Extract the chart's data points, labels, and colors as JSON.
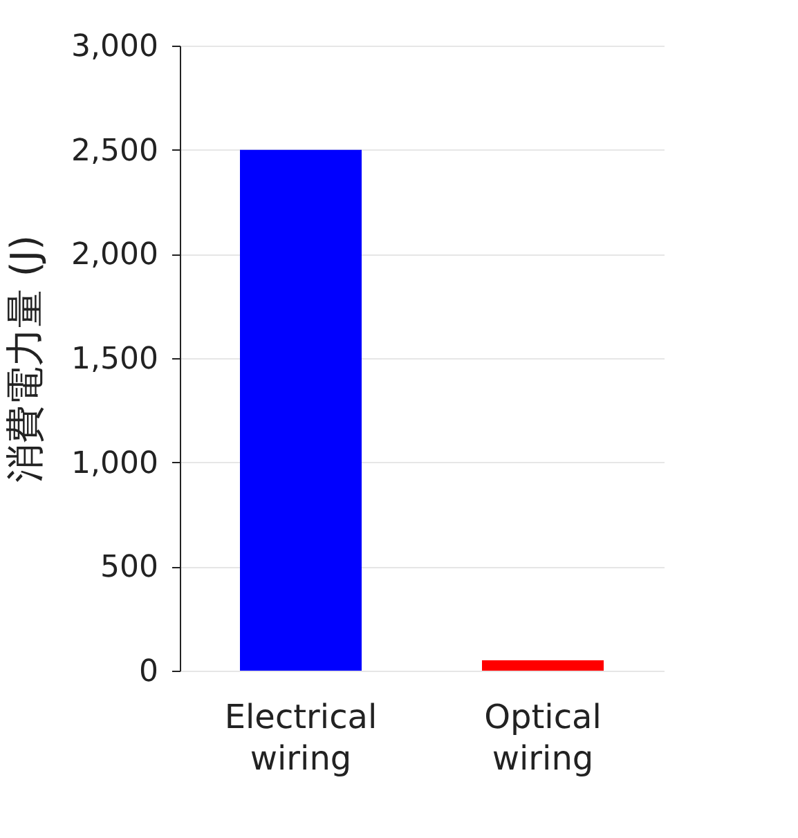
{
  "chart_data": {
    "type": "bar",
    "ylabel": "消費電力量 (J)",
    "categories": [
      "Electrical wiring",
      "Optical wiring"
    ],
    "values": [
      2500,
      50
    ],
    "colors": [
      "#0000ff",
      "#ff0000"
    ],
    "ylim": [
      0,
      3000
    ],
    "yticks": [
      0,
      500,
      {
        "value": 1000,
        "label": "1,000"
      },
      {
        "value": 1500,
        "label": "1,500"
      },
      {
        "value": 2000,
        "label": "2,000"
      },
      {
        "value": 2500,
        "label": "2,500"
      },
      {
        "value": 3000,
        "label": "3,000"
      }
    ],
    "grid": "y"
  }
}
